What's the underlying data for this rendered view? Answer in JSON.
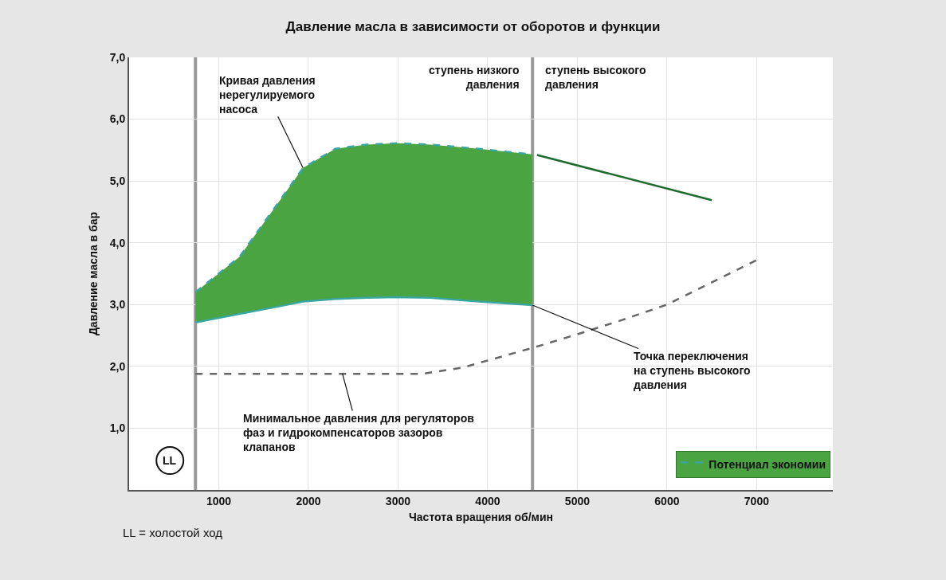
{
  "chart_data": {
    "type": "line",
    "title": "Давление масла в зависимости от оборотов и функции",
    "xlabel": "Частота вращения об/мин",
    "ylabel": "Давление масла в бар",
    "xlim": [
      0,
      7850
    ],
    "xticks": [
      1000,
      2000,
      3000,
      4000,
      5000,
      6000,
      7000
    ],
    "ylim": [
      0,
      7
    ],
    "yticks": [
      {
        "value": 1,
        "label": "1,0"
      },
      {
        "value": 2,
        "label": "2,0"
      },
      {
        "value": 3,
        "label": "3,0"
      },
      {
        "value": 4,
        "label": "4,0"
      },
      {
        "value": 5,
        "label": "5,0"
      },
      {
        "value": 6,
        "label": "6,0"
      },
      {
        "value": 7,
        "label": "7,0"
      }
    ],
    "grid": true,
    "legend": "bottom right",
    "marker": "none",
    "series": [
      {
        "type": "line",
        "color": "#3aa6a0",
        "line_style": "solid",
        "x": [
          740,
          1230,
          1670,
          1940,
          2300,
          2650,
          3000,
          3360,
          3900,
          4500
        ],
        "values": [
          2.71,
          2.85,
          2.97,
          3.05,
          3.09,
          3.11,
          3.12,
          3.11,
          3.05,
          2.99
        ]
      },
      {
        "type": "area",
        "name": "Потенциал экономии",
        "color": "#4aa441",
        "line_style": "dashed",
        "x": [
          740,
          1230,
          1670,
          1940,
          2300,
          2650,
          3000,
          3360,
          3900,
          4500
        ],
        "values": [
          3.2,
          3.77,
          4.66,
          5.21,
          5.52,
          5.59,
          5.61,
          5.59,
          5.52,
          5.43
        ]
      },
      {
        "color": "#1e6b2e",
        "line_style": "solid",
        "x": [
          4550,
          6500
        ],
        "values": [
          5.42,
          4.69
        ]
      },
      {
        "color": "#666666",
        "line_style": "dashed",
        "x": [
          740,
          3270,
          3720,
          4550,
          5000,
          5500,
          6000,
          7000
        ],
        "values": [
          1.88,
          1.88,
          1.98,
          2.32,
          2.52,
          2.75,
          3.0,
          3.72
        ]
      }
    ],
    "ref_lines": [
      {
        "axis": "x",
        "value": 740,
        "color": "#999999"
      },
      {
        "axis": "x",
        "value": 4500,
        "color": "#999999"
      }
    ],
    "annotations": [
      {
        "text": "Кривая давления\nнерегулируемого\nнасоса",
        "x": 1940,
        "y": 5.21
      },
      {
        "text": "Точка переключения\nна ступень высокого\nдавления",
        "x": 4500,
        "y": 2.99
      },
      {
        "text": "Минимальное давления для регуляторов\nфаз и гидрокомпенсаторов зазоров\nклапанов",
        "x": 2380,
        "y": 1.88
      },
      {
        "text": "ступень низкого\nдавления",
        "x": 4500,
        "y": 7
      },
      {
        "text": "ступень высокого\nдавления",
        "x": 4500,
        "y": 7
      },
      "LL",
      "LL = холостой ход"
    ]
  }
}
